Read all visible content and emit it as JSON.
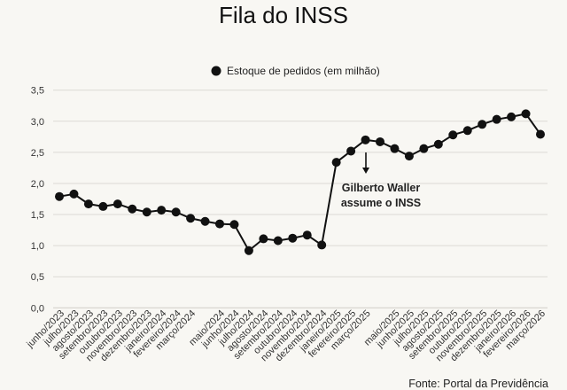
{
  "chart_data": {
    "type": "line",
    "title": "Fila do INSS",
    "legend": {
      "label": "Estoque de pedidos (em milhão)",
      "placement": "top"
    },
    "source": "Fonte: Portal da Previdência",
    "annotation": {
      "lines": [
        "Gilberto Waller",
        "assume o INSS"
      ],
      "at_category_index": 20
    },
    "ylim": [
      0,
      3.5
    ],
    "yticks": [
      "0,0",
      "0,5",
      "1,0",
      "1,5",
      "2,0",
      "2,5",
      "3,0",
      "3,5"
    ],
    "grid": true,
    "colors": {
      "line": "#111111",
      "grid": "#dcdad5",
      "background": "#f8f7f3"
    },
    "categories": [
      "junho/2023",
      "julho/2023",
      "agosto/2023",
      "setembro/2023",
      "outubro/2023",
      "novembro/2023",
      "dezembro/2023",
      "janeiro/2024",
      "fevereiro/2024",
      "março/2024",
      "",
      "maio/2024",
      "junho/2024",
      "julho/2024",
      "agosto/2024",
      "setembro/2024",
      "outubro/2024",
      "novembro/2024",
      "dezembro/2024",
      "janeiro/2025",
      "fevereiro/2025",
      "março/2025",
      "",
      "maio/2025",
      "junho/2025",
      "julho/2025",
      "agosto/2025",
      "setembro/2025",
      "outubro/2025",
      "novembro/2025",
      "dezembro/2025",
      "janeiro/2026",
      "fevereiro/2026",
      "março/2026"
    ],
    "series": [
      {
        "name": "Estoque de pedidos (em milhão)",
        "values": [
          1.79,
          1.83,
          1.67,
          1.63,
          1.67,
          1.59,
          1.54,
          1.57,
          1.54,
          1.44,
          1.39,
          1.35,
          1.34,
          0.92,
          1.11,
          1.08,
          1.12,
          1.17,
          1.01,
          2.34,
          2.52,
          2.7,
          2.67,
          2.56,
          2.44,
          2.56,
          2.63,
          2.78,
          2.85,
          2.95,
          3.03,
          3.07,
          3.12,
          2.79
        ]
      }
    ]
  }
}
